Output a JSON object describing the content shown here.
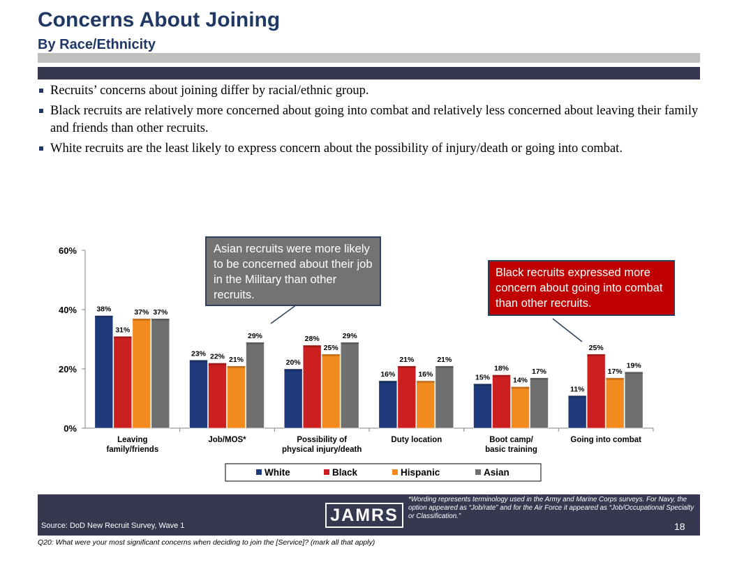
{
  "header": {
    "title": "Concerns About Joining",
    "subtitle": "By Race/Ethnicity"
  },
  "bullets": [
    "Recruits’ concerns about joining differ by racial/ethnic group.",
    "Black recruits are relatively more concerned about going into combat and relatively less concerned about leaving their family and friends than other recruits.",
    "White recruits are the least likely to express concern about the possibility of injury/death or going into combat."
  ],
  "callouts": {
    "asian": "Asian recruits were more likely to be concerned about their job in the Military than other recruits.",
    "black": "Black recruits expressed more concern about going into combat than other recruits."
  },
  "chart_data": {
    "type": "bar",
    "categories": [
      [
        "Leaving",
        "family/friends"
      ],
      [
        "Job/MOS*"
      ],
      [
        "Possibility of",
        "physical injury/death"
      ],
      [
        "Duty location"
      ],
      [
        "Boot camp/",
        "basic training"
      ],
      [
        "Going into combat"
      ]
    ],
    "series": [
      {
        "name": "White",
        "color": "#1f3a7a",
        "values": [
          38,
          23,
          20,
          16,
          15,
          11
        ]
      },
      {
        "name": "Black",
        "color": "#cc1f1f",
        "values": [
          31,
          22,
          28,
          21,
          18,
          25
        ]
      },
      {
        "name": "Hispanic",
        "color": "#f28a1e",
        "values": [
          37,
          21,
          25,
          16,
          14,
          17
        ]
      },
      {
        "name": "Asian",
        "color": "#6f6f6f",
        "values": [
          37,
          29,
          29,
          21,
          17,
          19
        ]
      }
    ],
    "ylim": [
      0,
      60
    ],
    "yticks": [
      0,
      20,
      40,
      60
    ],
    "ytick_labels": [
      "0%",
      "20%",
      "40%",
      "60%"
    ],
    "data_label_suffix": "%",
    "legend_position": "bottom",
    "grid": false
  },
  "footer": {
    "source": "Source:  DoD New Recruit Survey, Wave 1",
    "logo_text": "JAMRS",
    "footnote": "*Wording represents terminology used in the Army and Marine Corps surveys. For Navy, the option appeared as “Job/rate” and for the Air Force it appeared as “Job/Occupational Specialty or Classification.”",
    "page_number": "18"
  },
  "question": "Q20:  What were your most significant concerns when deciding to join the [Service]?  (mark all that apply)"
}
